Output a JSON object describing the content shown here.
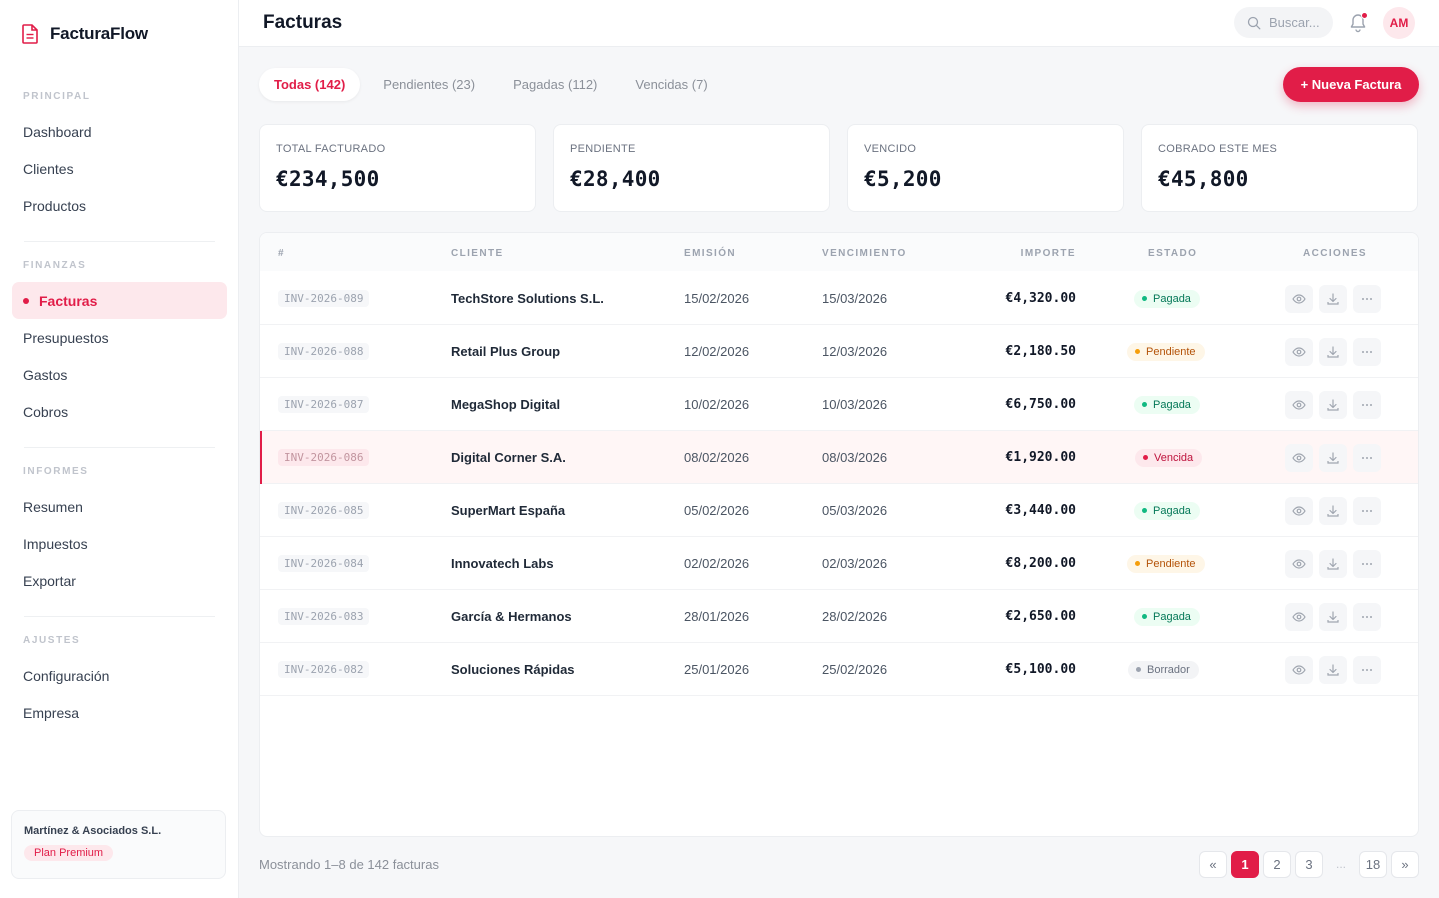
{
  "app": {
    "name": "FacturaFlow"
  },
  "sidebar": {
    "sections": [
      {
        "title": "PRINCIPAL",
        "items": [
          "Dashboard",
          "Clientes",
          "Productos"
        ]
      },
      {
        "title": "FINANZAS",
        "items": [
          "Facturas",
          "Presupuestos",
          "Gastos",
          "Cobros"
        ]
      },
      {
        "title": "INFORMES",
        "items": [
          "Resumen",
          "Impuestos",
          "Exportar"
        ]
      },
      {
        "title": "AJUSTES",
        "items": [
          "Configuración",
          "Empresa"
        ]
      }
    ],
    "active_item": "Facturas",
    "company": {
      "name": "Martínez & Asociados S.L.",
      "plan": "Plan Premium"
    }
  },
  "header": {
    "title": "Facturas",
    "search_placeholder": "Buscar...",
    "avatar_initials": "AM",
    "has_notification": true
  },
  "tabs": [
    {
      "label": "Todas (142)",
      "active": true
    },
    {
      "label": "Pendientes (23)",
      "active": false
    },
    {
      "label": "Pagadas (112)",
      "active": false
    },
    {
      "label": "Vencidas (7)",
      "active": false
    }
  ],
  "new_invoice_label": "+ Nueva Factura",
  "stats": [
    {
      "label": "TOTAL FACTURADO",
      "value": "€234,500"
    },
    {
      "label": "PENDIENTE",
      "value": "€28,400"
    },
    {
      "label": "VENCIDO",
      "value": "€5,200"
    },
    {
      "label": "COBRADO ESTE MES",
      "value": "€45,800"
    }
  ],
  "table": {
    "columns": [
      "#",
      "CLIENTE",
      "EMISIÓN",
      "VENCIMIENTO",
      "IMPORTE",
      "ESTADO",
      "ACCIONES"
    ],
    "rows": [
      {
        "id": "INV-2026-089",
        "client": "TechStore Solutions S.L.",
        "issued": "15/02/2026",
        "due": "15/03/2026",
        "amount": "€4,320.00",
        "status": "Pagada",
        "kind": "paid"
      },
      {
        "id": "INV-2026-088",
        "client": "Retail Plus Group",
        "issued": "12/02/2026",
        "due": "12/03/2026",
        "amount": "€2,180.50",
        "status": "Pendiente",
        "kind": "pend"
      },
      {
        "id": "INV-2026-087",
        "client": "MegaShop Digital",
        "issued": "10/02/2026",
        "due": "10/03/2026",
        "amount": "€6,750.00",
        "status": "Pagada",
        "kind": "paid"
      },
      {
        "id": "INV-2026-086",
        "client": "Digital Corner S.A.",
        "issued": "08/02/2026",
        "due": "08/03/2026",
        "amount": "€1,920.00",
        "status": "Vencida",
        "kind": "over"
      },
      {
        "id": "INV-2026-085",
        "client": "SuperMart España",
        "issued": "05/02/2026",
        "due": "05/03/2026",
        "amount": "€3,440.00",
        "status": "Pagada",
        "kind": "paid"
      },
      {
        "id": "INV-2026-084",
        "client": "Innovatech Labs",
        "issued": "02/02/2026",
        "due": "02/03/2026",
        "amount": "€8,200.00",
        "status": "Pendiente",
        "kind": "pend"
      },
      {
        "id": "INV-2026-083",
        "client": "García & Hermanos",
        "issued": "28/01/2026",
        "due": "28/02/2026",
        "amount": "€2,650.00",
        "status": "Pagada",
        "kind": "paid"
      },
      {
        "id": "INV-2026-082",
        "client": "Soluciones Rápidas",
        "issued": "25/01/2026",
        "due": "25/02/2026",
        "amount": "€5,100.00",
        "status": "Borrador",
        "kind": "draft"
      }
    ]
  },
  "footer": {
    "showing": "Mostrando 1–8 de 142 facturas",
    "pagination": {
      "prev": "«",
      "pages": [
        "1",
        "2",
        "3"
      ],
      "ellipsis": "...",
      "last": "18",
      "next": "»",
      "current": "1"
    }
  },
  "colors": {
    "accent": "#e11d48",
    "paid": "#10b981",
    "pending": "#f59e0b",
    "draft": "#9ca3af"
  }
}
